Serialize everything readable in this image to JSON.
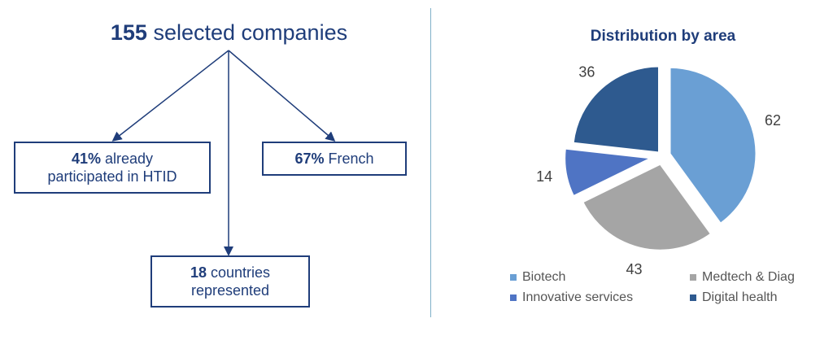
{
  "left": {
    "headline": {
      "number": "155",
      "text": " selected companies"
    },
    "box_hist": {
      "number": "41%",
      "text_line1": " already",
      "text_line2": "participated in HTID"
    },
    "box_french": {
      "number": "67%",
      "text": " French"
    },
    "box_countries": {
      "number": "18",
      "text_line1": " countries",
      "text_line2": "represented"
    }
  },
  "chart_data": {
    "type": "pie",
    "title": "Distribution by area",
    "categories": [
      "Biotech",
      "Medtech & Diag",
      "Innovative services",
      "Digital health"
    ],
    "values": [
      62,
      43,
      14,
      36
    ],
    "colors": [
      "#6a9fd4",
      "#a5a5a5",
      "#4f74c4",
      "#2e5a8f"
    ],
    "legend": "bottom",
    "exploded": true
  }
}
